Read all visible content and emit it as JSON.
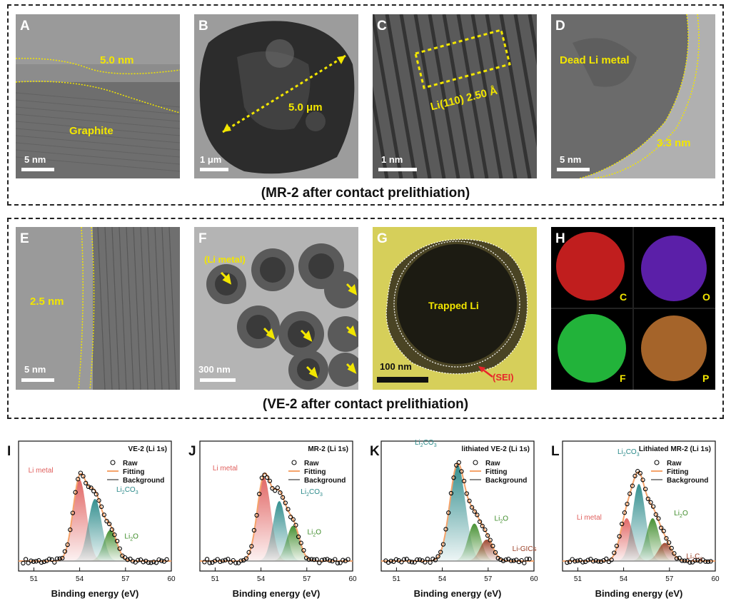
{
  "top_group": {
    "caption": "(MR-2 after contact prelithiation)",
    "panels": [
      {
        "letter": "A",
        "scale": "5 nm",
        "labels": [
          "5.0 nm",
          "Graphite"
        ]
      },
      {
        "letter": "B",
        "scale": "1 μm",
        "labels": [
          "5.0 μm"
        ]
      },
      {
        "letter": "C",
        "scale": "1 nm",
        "labels": [
          "Li(110) 2.50 Å"
        ]
      },
      {
        "letter": "D",
        "scale": "5 nm",
        "labels": [
          "Dead Li metal",
          "3.3 nm"
        ]
      }
    ]
  },
  "bottom_group": {
    "caption": "(VE-2 after contact prelithiation)",
    "panels": [
      {
        "letter": "E",
        "scale": "5 nm",
        "labels": [
          "2.5 nm"
        ]
      },
      {
        "letter": "F",
        "scale": "300 nm",
        "labels": [
          "(Li metal)"
        ]
      },
      {
        "letter": "G",
        "scale": "100 nm",
        "labels": [
          "Trapped Li",
          "(SEI)"
        ]
      },
      {
        "letter": "H",
        "labels": [
          "C",
          "O",
          "F",
          "P"
        ]
      }
    ]
  },
  "colors": {
    "tem_gray": "#8a8a8a",
    "annotation_yellow": "#f2e600",
    "sei_red": "#e8262a",
    "raw_marker": "#000000",
    "fitting": "#f5a36b",
    "background_line": "#8a8a8a",
    "li_metal": "#e0605e",
    "li2co3": "#2b8a8a",
    "li2o": "#3f8c2a",
    "li_gics": "#9a3f26",
    "li2c6": "#9a3f26",
    "eds_c": "#c01e1e",
    "eds_o": "#5b1fa8",
    "eds_f": "#22b33a",
    "eds_p": "#a5642a"
  },
  "chart_data": [
    {
      "panel": "I",
      "type": "area",
      "title": "VE-2 (Li 1s)",
      "xlabel": "Binding energy (eV)",
      "xticks": [
        "51",
        "54",
        "57",
        "60"
      ],
      "xlim": [
        50,
        60
      ],
      "legend": [
        "Raw",
        "Fitting",
        "Background"
      ],
      "legend_position": "top-right",
      "peaks": [
        {
          "name": "Li metal",
          "center": 54.0,
          "height": 0.76,
          "fwhm": 1.05,
          "color": "li_metal"
        },
        {
          "name": "Li2CO3",
          "center": 55.0,
          "height": 0.58,
          "fwhm": 1.05,
          "color": "li2co3"
        },
        {
          "name": "Li2O",
          "center": 56.0,
          "height": 0.29,
          "fwhm": 1.0,
          "color": "li2o"
        }
      ]
    },
    {
      "panel": "J",
      "type": "area",
      "title": "MR-2 (Li 1s)",
      "xlabel": "Binding energy (eV)",
      "xticks": [
        "51",
        "54",
        "57",
        "60"
      ],
      "xlim": [
        50,
        60
      ],
      "legend": [
        "Raw",
        "Fitting",
        "Background"
      ],
      "legend_position": "top-right",
      "peaks": [
        {
          "name": "Li metal",
          "center": 54.2,
          "height": 0.78,
          "fwhm": 1.05,
          "color": "li_metal"
        },
        {
          "name": "Li2CO3",
          "center": 55.2,
          "height": 0.56,
          "fwhm": 1.0,
          "color": "li2co3"
        },
        {
          "name": "Li2O",
          "center": 56.1,
          "height": 0.33,
          "fwhm": 1.0,
          "color": "li2o"
        }
      ]
    },
    {
      "panel": "K",
      "type": "area",
      "title": "lithiated VE-2 (Li 1s)",
      "xlabel": "Binding energy (eV)",
      "xticks": [
        "51",
        "54",
        "57",
        "60"
      ],
      "xlim": [
        50,
        60
      ],
      "legend": [
        "Raw",
        "Fitting",
        "Background"
      ],
      "legend_position": "top-right",
      "peaks": [
        {
          "name": "Li2CO3",
          "center": 55.0,
          "height": 0.9,
          "fwhm": 1.2,
          "color": "li2co3"
        },
        {
          "name": "Li2O",
          "center": 56.1,
          "height": 0.35,
          "fwhm": 1.0,
          "color": "li2o"
        },
        {
          "name": "Li-GICs",
          "center": 56.9,
          "height": 0.2,
          "fwhm": 1.0,
          "color": "li_gics"
        }
      ]
    },
    {
      "panel": "L",
      "type": "area",
      "title": "Lithiated MR-2 (Li 1s)",
      "xlabel": "Binding energy (eV)",
      "xticks": [
        "51",
        "54",
        "57",
        "60"
      ],
      "xlim": [
        50,
        60
      ],
      "legend": [
        "Raw",
        "Fitting",
        "Background"
      ],
      "legend_position": "top-right",
      "peaks": [
        {
          "name": "Li metal",
          "center": 54.2,
          "height": 0.4,
          "fwhm": 1.0,
          "color": "li_metal"
        },
        {
          "name": "Li2CO3",
          "center": 55.0,
          "height": 0.72,
          "fwhm": 1.0,
          "color": "li2co3"
        },
        {
          "name": "Li2O",
          "center": 55.9,
          "height": 0.4,
          "fwhm": 1.0,
          "color": "li2o"
        },
        {
          "name": "Li2C6",
          "center": 56.7,
          "height": 0.17,
          "fwhm": 1.0,
          "color": "li2c6"
        }
      ]
    }
  ]
}
